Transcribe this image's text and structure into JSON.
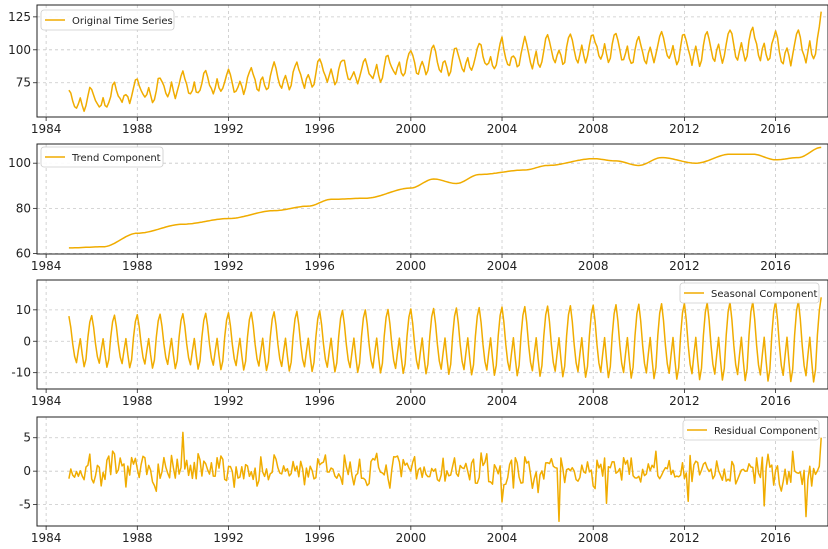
{
  "figure": {
    "line_color": "#f0ac00",
    "grid": true,
    "x_ticks": [
      "1984",
      "1988",
      "1992",
      "1996",
      "2000",
      "2004",
      "2008",
      "2012",
      "2016"
    ]
  },
  "chart_data": [
    {
      "type": "line",
      "series": [
        {
          "name": "Original Time Series",
          "color": "#f0ac00"
        }
      ],
      "legend_position": "top-left",
      "grid": true,
      "x_tick_labels": [
        "1984",
        "1988",
        "1992",
        "1996",
        "2000",
        "2004",
        "2008",
        "2012",
        "2016"
      ],
      "y_tick_labels": [
        "75",
        "100",
        "125"
      ],
      "xlim": [
        1983.6,
        2018.3
      ],
      "ylim": [
        49,
        134
      ],
      "x_start": 1985.0,
      "x_end": 2018.0,
      "points_per_year": 12,
      "trend_anchors": [
        [
          1985,
          62.5
        ],
        [
          1986.5,
          63
        ],
        [
          1988,
          69
        ],
        [
          1990,
          73
        ],
        [
          1992,
          75.5
        ],
        [
          1994,
          79
        ],
        [
          1995.5,
          81
        ],
        [
          1996.5,
          84
        ],
        [
          1998,
          84.5
        ],
        [
          2000,
          89
        ],
        [
          2001,
          93
        ],
        [
          2002,
          91
        ],
        [
          2003,
          95
        ],
        [
          2005,
          97
        ],
        [
          2006,
          99
        ],
        [
          2008,
          102
        ],
        [
          2009,
          101
        ],
        [
          2010,
          99
        ],
        [
          2011,
          102.5
        ],
        [
          2012.5,
          100
        ],
        [
          2014,
          104
        ],
        [
          2015,
          104
        ],
        [
          2016,
          101.5
        ],
        [
          2017,
          102.5
        ],
        [
          2018,
          107
        ]
      ],
      "seasonal_amplitude_start": 8,
      "seasonal_amplitude_end": 13,
      "seasonal_offset": 0,
      "noise_scale": 1.8,
      "noise_seed": 7,
      "last_value": 129
    },
    {
      "type": "line",
      "series": [
        {
          "name": "Trend Component",
          "color": "#f0ac00"
        }
      ],
      "legend_position": "top-left",
      "grid": true,
      "x_tick_labels": [
        "1984",
        "1988",
        "1992",
        "1996",
        "2000",
        "2004",
        "2008",
        "2012",
        "2016"
      ],
      "y_tick_labels": [
        "60",
        "80",
        "100"
      ],
      "xlim": [
        1983.6,
        2018.3
      ],
      "ylim": [
        59.8,
        108.5
      ],
      "x_start": 1985.0,
      "x_end": 2018.0,
      "points_per_year": 12,
      "trend_anchors": [
        [
          1985,
          62.5
        ],
        [
          1986.5,
          63
        ],
        [
          1988,
          69
        ],
        [
          1990,
          73
        ],
        [
          1992,
          75.5
        ],
        [
          1994,
          79
        ],
        [
          1995.5,
          81
        ],
        [
          1996.5,
          84
        ],
        [
          1998,
          84.5
        ],
        [
          2000,
          89
        ],
        [
          2001,
          93
        ],
        [
          2002,
          91
        ],
        [
          2003,
          95
        ],
        [
          2005,
          97
        ],
        [
          2006,
          99
        ],
        [
          2008,
          102
        ],
        [
          2009,
          101
        ],
        [
          2010,
          99
        ],
        [
          2011,
          102.5
        ],
        [
          2012.5,
          100
        ],
        [
          2014,
          104
        ],
        [
          2015,
          104
        ],
        [
          2016,
          101.5
        ],
        [
          2017,
          102.5
        ],
        [
          2018,
          107
        ]
      ],
      "seasonal_amplitude_start": 0,
      "seasonal_amplitude_end": 0,
      "seasonal_offset": 0,
      "noise_scale": 0,
      "noise_seed": 0,
      "last_value": 107
    },
    {
      "type": "line",
      "series": [
        {
          "name": "Seasonal Component",
          "color": "#f0ac00"
        }
      ],
      "legend_position": "top-right",
      "grid": true,
      "x_tick_labels": [
        "1984",
        "1988",
        "1992",
        "1996",
        "2000",
        "2004",
        "2008",
        "2012",
        "2016"
      ],
      "y_tick_labels": [
        "-10",
        "0",
        "10"
      ],
      "xlim": [
        1983.6,
        2018.3
      ],
      "ylim": [
        -15.2,
        19.5
      ],
      "x_start": 1985.0,
      "x_end": 2018.0,
      "points_per_year": 12,
      "trend_anchors": [
        [
          1985,
          0
        ],
        [
          2018,
          0
        ]
      ],
      "seasonal_amplitude_start": 8,
      "seasonal_amplitude_end": 13,
      "seasonal_offset": 0,
      "noise_scale": 0,
      "noise_seed": 0,
      "last_value": 14
    },
    {
      "type": "line",
      "series": [
        {
          "name": "Residual Component",
          "color": "#f0ac00"
        }
      ],
      "legend_position": "top-right",
      "grid": true,
      "x_tick_labels": [
        "1984",
        "1988",
        "1992",
        "1996",
        "2000",
        "2004",
        "2008",
        "2012",
        "2016"
      ],
      "y_tick_labels": [
        "-5",
        "0",
        "5"
      ],
      "xlim": [
        1983.6,
        2018.3
      ],
      "ylim": [
        -8.2,
        8.1
      ],
      "x_start": 1985.0,
      "x_end": 2018.0,
      "points_per_year": 12,
      "trend_anchors": [
        [
          1985,
          0
        ],
        [
          2018,
          0
        ]
      ],
      "seasonal_amplitude_start": 0,
      "seasonal_amplitude_end": 0,
      "seasonal_offset": 0,
      "noise_scale": 1.8,
      "noise_seed": 7,
      "last_value": 5,
      "spikes": [
        [
          1990.0,
          5.8
        ],
        [
          2006.5,
          -7.5
        ],
        [
          2017.35,
          -6.8
        ],
        [
          2015.5,
          -5.2
        ],
        [
          2004.0,
          -4.6
        ],
        [
          2008.6,
          -4.8
        ],
        [
          2012.2,
          -4.5
        ]
      ]
    }
  ]
}
